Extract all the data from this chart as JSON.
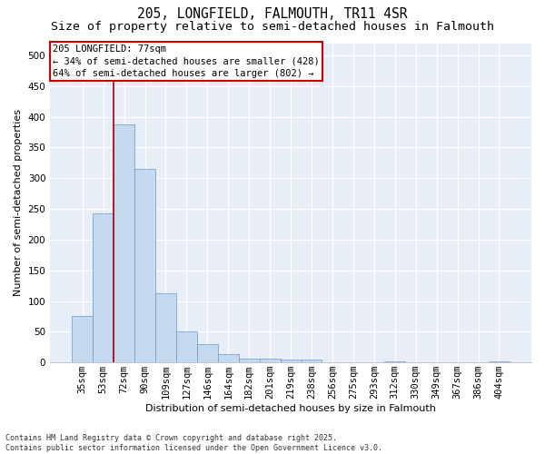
{
  "title_line1": "205, LONGFIELD, FALMOUTH, TR11 4SR",
  "title_line2": "Size of property relative to semi-detached houses in Falmouth",
  "xlabel": "Distribution of semi-detached houses by size in Falmouth",
  "ylabel": "Number of semi-detached properties",
  "categories": [
    "35sqm",
    "53sqm",
    "72sqm",
    "90sqm",
    "109sqm",
    "127sqm",
    "146sqm",
    "164sqm",
    "182sqm",
    "201sqm",
    "219sqm",
    "238sqm",
    "256sqm",
    "275sqm",
    "293sqm",
    "312sqm",
    "330sqm",
    "349sqm",
    "367sqm",
    "386sqm",
    "404sqm"
  ],
  "values": [
    75,
    243,
    388,
    315,
    113,
    50,
    30,
    14,
    6,
    6,
    5,
    4,
    0,
    0,
    0,
    2,
    0,
    0,
    0,
    0,
    2
  ],
  "bar_color": "#c5d9f0",
  "bar_edge_color": "#6699cc",
  "vline_color": "#aa0000",
  "vline_bar_index": 2,
  "annotation_title": "205 LONGFIELD: 77sqm",
  "annotation_line2": "← 34% of semi-detached houses are smaller (428)",
  "annotation_line3": "64% of semi-detached houses are larger (802) →",
  "annotation_box_color": "#cc0000",
  "ylim": [
    0,
    520
  ],
  "yticks": [
    0,
    50,
    100,
    150,
    200,
    250,
    300,
    350,
    400,
    450,
    500
  ],
  "background_color": "#e8eef8",
  "grid_color": "#ffffff",
  "footnote": "Contains HM Land Registry data © Crown copyright and database right 2025.\nContains public sector information licensed under the Open Government Licence v3.0.",
  "title_fontsize": 10.5,
  "subtitle_fontsize": 9.5,
  "axis_label_fontsize": 8,
  "tick_fontsize": 7.5,
  "annotation_fontsize": 7.5,
  "footnote_fontsize": 6
}
